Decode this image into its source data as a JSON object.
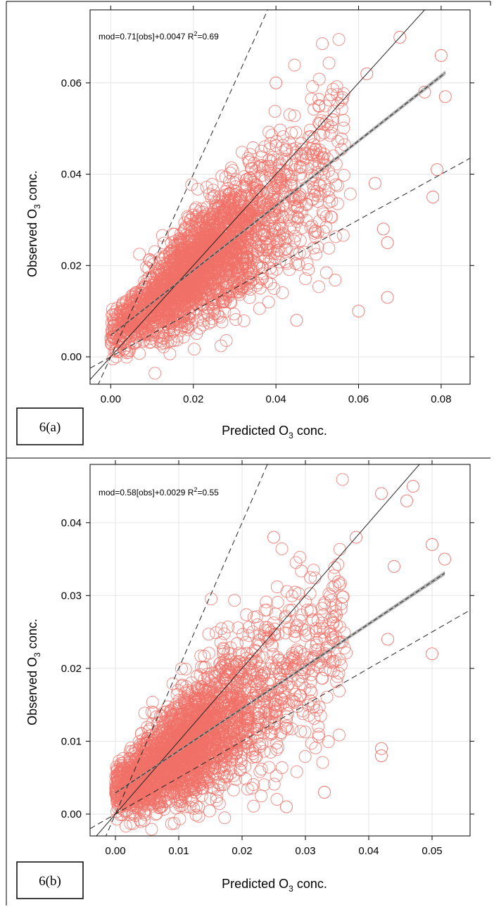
{
  "chart_data": [
    {
      "type": "scatter",
      "panel_label": "6(a)",
      "xlabel": {
        "prefix": "Predicted  O",
        "sub": "3",
        "suffix": " conc."
      },
      "ylabel": {
        "prefix": "Observed O",
        "sub": "3",
        "suffix": " conc."
      },
      "annotation": {
        "main": "mod=0.71[obs]+0.0047 R",
        "sup": "2",
        "tail": "=0.69"
      },
      "xlim": [
        -0.005,
        0.087
      ],
      "ylim": [
        -0.006,
        0.076
      ],
      "xticks": [
        "0.00",
        "0.02",
        "0.04",
        "0.06",
        "0.08"
      ],
      "yticks": [
        "0.00",
        "0.02",
        "0.04",
        "0.06"
      ],
      "grid": true,
      "marker_color": "#f07167",
      "fit": {
        "slope": 0.71,
        "intercept": 0.0047,
        "r2": 0.69
      },
      "reference_lines": [
        {
          "style": "solid",
          "slope": 1
        },
        {
          "style": "dashed",
          "slope": 2
        },
        {
          "style": "dashed",
          "slope": 0.5
        }
      ],
      "cloud": {
        "n": 2600,
        "x_mean": 0.022,
        "x_sd": 0.011,
        "x_max": 0.081,
        "y_sd": 0.0062
      },
      "outliers": [
        {
          "x": 0.08,
          "y": 0.066
        },
        {
          "x": 0.081,
          "y": 0.057
        },
        {
          "x": 0.078,
          "y": 0.035
        },
        {
          "x": 0.079,
          "y": 0.041
        },
        {
          "x": 0.067,
          "y": 0.013
        },
        {
          "x": 0.06,
          "y": 0.01
        },
        {
          "x": 0.07,
          "y": 0.07
        },
        {
          "x": 0.076,
          "y": 0.058
        },
        {
          "x": 0.066,
          "y": 0.028
        },
        {
          "x": 0.064,
          "y": 0.038
        },
        {
          "x": 0.062,
          "y": 0.062
        },
        {
          "x": 0.04,
          "y": 0.06
        },
        {
          "x": 0.067,
          "y": 0.025
        },
        {
          "x": 0.045,
          "y": 0.008
        }
      ]
    },
    {
      "type": "scatter",
      "panel_label": "6(b)",
      "xlabel": {
        "prefix": "Predicted  O",
        "sub": "3",
        "suffix": " conc."
      },
      "ylabel": {
        "prefix": "Observed O",
        "sub": "3",
        "suffix": " conc."
      },
      "annotation": {
        "main": "mod=0.58[obs]+0.0029 R",
        "sup": "2",
        "tail": "=0.55"
      },
      "xlim": [
        -0.004,
        0.056
      ],
      "ylim": [
        -0.003,
        0.048
      ],
      "xticks": [
        "0.00",
        "0.01",
        "0.02",
        "0.03",
        "0.04",
        "0.05"
      ],
      "yticks": [
        "0.00",
        "0.01",
        "0.02",
        "0.03",
        "0.04"
      ],
      "grid": true,
      "marker_color": "#f07167",
      "fit": {
        "slope": 0.58,
        "intercept": 0.0029,
        "r2": 0.55
      },
      "reference_lines": [
        {
          "style": "solid",
          "slope": 1
        },
        {
          "style": "dashed",
          "slope": 2
        },
        {
          "style": "dashed",
          "slope": 0.5
        }
      ],
      "cloud": {
        "n": 2600,
        "x_mean": 0.011,
        "x_sd": 0.0075,
        "x_max": 0.052,
        "y_sd": 0.0045
      },
      "outliers": [
        {
          "x": 0.05,
          "y": 0.037
        },
        {
          "x": 0.05,
          "y": 0.022
        },
        {
          "x": 0.052,
          "y": 0.035
        },
        {
          "x": 0.047,
          "y": 0.045
        },
        {
          "x": 0.046,
          "y": 0.043
        },
        {
          "x": 0.042,
          "y": 0.044
        },
        {
          "x": 0.042,
          "y": 0.009
        },
        {
          "x": 0.042,
          "y": 0.008
        },
        {
          "x": 0.025,
          "y": 0.038
        },
        {
          "x": 0.027,
          "y": 0.001
        },
        {
          "x": 0.033,
          "y": 0.003
        },
        {
          "x": 0.044,
          "y": 0.034
        },
        {
          "x": 0.038,
          "y": 0.038
        },
        {
          "x": 0.043,
          "y": 0.024
        }
      ]
    }
  ]
}
